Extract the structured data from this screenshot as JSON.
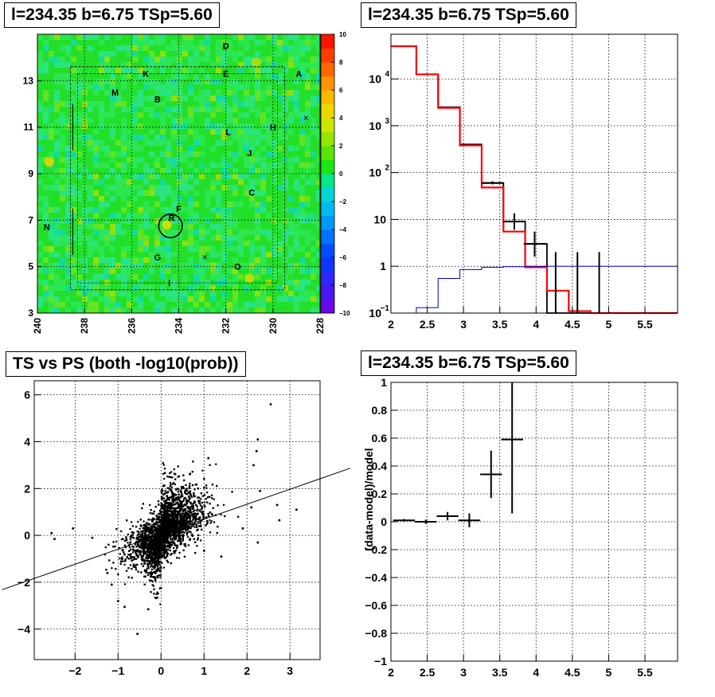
{
  "titles": {
    "map": "l=234.35 b=6.75 TSp=5.60",
    "hist": "l=234.35 b=6.75 TSp=5.60",
    "scatter": "TS vs PS (both -log10(prob))",
    "resid": "l=234.35 b=6.75 TSp=5.60"
  },
  "chart_data": [
    {
      "type": "heatmap",
      "title": "l=234.35 b=6.75 TSp=5.60",
      "xlim": [
        240,
        228
      ],
      "ylim": [
        3,
        15
      ],
      "x_ticks": [
        240,
        238,
        236,
        234,
        232,
        230,
        228
      ],
      "y_ticks": [
        3,
        5,
        7,
        9,
        11,
        13
      ],
      "colorbar": {
        "range": [
          -10,
          10
        ],
        "ticks": [
          10,
          8,
          6,
          4,
          2,
          0,
          -2,
          -4,
          -6,
          -8,
          -10
        ]
      },
      "grid": true,
      "source_labels": [
        {
          "label": "D",
          "l": 232.0,
          "b": 14.5
        },
        {
          "label": "A",
          "l": 228.9,
          "b": 13.3
        },
        {
          "label": "K",
          "l": 235.4,
          "b": 13.3
        },
        {
          "label": "E",
          "l": 232.0,
          "b": 13.3
        },
        {
          "label": "M",
          "l": 236.7,
          "b": 12.5
        },
        {
          "label": "B",
          "l": 234.9,
          "b": 12.2
        },
        {
          "label": "L",
          "l": 231.9,
          "b": 10.8
        },
        {
          "label": "H",
          "l": 230.0,
          "b": 11.0
        },
        {
          "label": "J",
          "l": 231.0,
          "b": 9.9
        },
        {
          "label": "C",
          "l": 230.9,
          "b": 8.2
        },
        {
          "label": "F",
          "l": 234.0,
          "b": 7.5
        },
        {
          "label": "R",
          "l": 234.3,
          "b": 7.1
        },
        {
          "label": "N",
          "l": 239.6,
          "b": 6.7
        },
        {
          "label": "G",
          "l": 234.9,
          "b": 5.4
        },
        {
          "label": "O",
          "l": 231.5,
          "b": 5.0
        },
        {
          "label": "I",
          "l": 234.4,
          "b": 4.3
        }
      ],
      "crosses": [
        {
          "l": 228.6,
          "b": 11.4
        },
        {
          "l": 232.9,
          "b": 5.4
        }
      ],
      "circle": {
        "l": 234.35,
        "b": 6.75,
        "r": 0.5
      }
    },
    {
      "type": "line",
      "title": "l=234.35 b=6.75 TSp=5.60",
      "xlim": [
        2,
        5.95
      ],
      "ylim": [
        0.1,
        90000
      ],
      "y_scale": "log",
      "x_ticks": [
        2,
        2.5,
        3,
        3.5,
        4,
        4.5,
        5,
        5.5
      ],
      "y_ticks": [
        {
          "v": 0.1,
          "label": "10",
          "sup": "−1"
        },
        {
          "v": 1,
          "label": "1",
          "sup": ""
        },
        {
          "v": 10,
          "label": "10",
          "sup": ""
        },
        {
          "v": 100,
          "label": "10",
          "sup": "2"
        },
        {
          "v": 1000,
          "label": "10",
          "sup": "3"
        },
        {
          "v": 10000,
          "label": "10",
          "sup": "4"
        }
      ],
      "grid": true,
      "bin_edges": [
        2.0,
        2.35,
        2.65,
        2.95,
        3.25,
        3.55,
        3.85,
        4.15,
        4.45,
        4.75,
        5.05,
        5.35,
        5.65,
        5.95
      ],
      "series": [
        {
          "color": "#000000",
          "values": [
            50000,
            12500,
            2500,
            400,
            60,
            9,
            3,
            0.1,
            0.1,
            0.1,
            0.1,
            0.1,
            0.1
          ]
        },
        {
          "color": "#ff0000",
          "values": [
            50000,
            12500,
            2400,
            380,
            48,
            5.5,
            0.95,
            0.3,
            0.11,
            0.1,
            0.1,
            0.1,
            0.1
          ]
        },
        {
          "color": "#0000cc",
          "values": [
            0.1,
            0.13,
            0.55,
            0.85,
            0.95,
            0.98,
            1.0,
            1.0,
            1.0,
            1.0,
            1.0,
            1.0,
            1.0
          ]
        }
      ],
      "errorbars": [
        {
          "x": 3.4,
          "xerr": 0.15,
          "y": 60,
          "ylo": 56,
          "yhi": 65
        },
        {
          "x": 3.7,
          "xerr": 0.15,
          "y": 9,
          "ylo": 6,
          "yhi": 13.5
        },
        {
          "x": 3.98,
          "xerr": 0.15,
          "y": 3,
          "ylo": 1.6,
          "yhi": 5.5
        },
        {
          "x": 4.27,
          "xerr": 0,
          "y": 0.1,
          "ylo": 0.1,
          "yhi": 2
        },
        {
          "x": 4.57,
          "xerr": 0,
          "y": 0.1,
          "ylo": 0.1,
          "yhi": 2
        },
        {
          "x": 4.87,
          "xerr": 0,
          "y": 0.1,
          "ylo": 0.1,
          "yhi": 2
        }
      ]
    },
    {
      "type": "scatter",
      "title": "TS vs PS (both -log10(prob))",
      "xlim": [
        -2.95,
        3.7
      ],
      "ylim": [
        -5.3,
        6.6
      ],
      "x_ticks": [
        -2,
        -1,
        0,
        1,
        2,
        3
      ],
      "y_ticks": [
        -4,
        -2,
        0,
        2,
        4,
        6
      ],
      "grid": true,
      "fit_line": {
        "slope": 0.64,
        "intercept": 0.05
      },
      "notable_points": [
        {
          "x": 2.55,
          "y": 5.6
        },
        {
          "x": 2.25,
          "y": 4.1
        },
        {
          "x": 2.22,
          "y": 3.6
        },
        {
          "x": 2.15,
          "y": 3.0
        },
        {
          "x": 1.1,
          "y": 3.3
        },
        {
          "x": 2.3,
          "y": 1.9
        },
        {
          "x": 3.15,
          "y": 1.1
        },
        {
          "x": 2.7,
          "y": 1.3
        },
        {
          "x": 2.1,
          "y": 1.2
        },
        {
          "x": 2.75,
          "y": 0.65
        },
        {
          "x": 1.9,
          "y": 0.3
        },
        {
          "x": 2.25,
          "y": -0.3
        },
        {
          "x": -2.05,
          "y": 0.3
        },
        {
          "x": -2.48,
          "y": -0.15
        },
        {
          "x": -2.55,
          "y": 0.1
        },
        {
          "x": -1.0,
          "y": -2.8
        },
        {
          "x": -0.55,
          "y": -4.2
        },
        {
          "x": -1.15,
          "y": -2.1
        },
        {
          "x": -1.25,
          "y": -1.6
        },
        {
          "x": -0.85,
          "y": -3.05
        },
        {
          "x": -1.6,
          "y": -0.1
        },
        {
          "x": -0.3,
          "y": -3.15
        },
        {
          "x": 1.0,
          "y": -0.65
        },
        {
          "x": 1.4,
          "y": -0.9
        }
      ]
    },
    {
      "type": "scatter",
      "title": "l=234.35 b=6.75 TSp=5.60",
      "ylabel": "(data-model)/model",
      "xlim": [
        2,
        5.95
      ],
      "ylim": [
        -1,
        1
      ],
      "x_ticks": [
        2,
        2.5,
        3,
        3.5,
        4,
        4.5,
        5,
        5.5
      ],
      "y_ticks": [
        -1,
        -0.8,
        -0.6,
        -0.4,
        -0.2,
        0,
        0.2,
        0.4,
        0.6,
        0.8,
        1
      ],
      "grid": true,
      "points": [
        {
          "x": 2.18,
          "xerr": 0.15,
          "y": 0.01,
          "yerr": 0.01
        },
        {
          "x": 2.48,
          "xerr": 0.15,
          "y": 0.0,
          "yerr": 0.015
        },
        {
          "x": 2.78,
          "xerr": 0.15,
          "y": 0.04,
          "yerr": 0.03
        },
        {
          "x": 3.08,
          "xerr": 0.15,
          "y": 0.01,
          "yerr": 0.05
        },
        {
          "x": 3.38,
          "xerr": 0.15,
          "y": 0.34,
          "yerr": 0.17
        },
        {
          "x": 3.67,
          "xerr": 0.15,
          "y": 0.59,
          "yerr": 0.53
        }
      ]
    }
  ]
}
